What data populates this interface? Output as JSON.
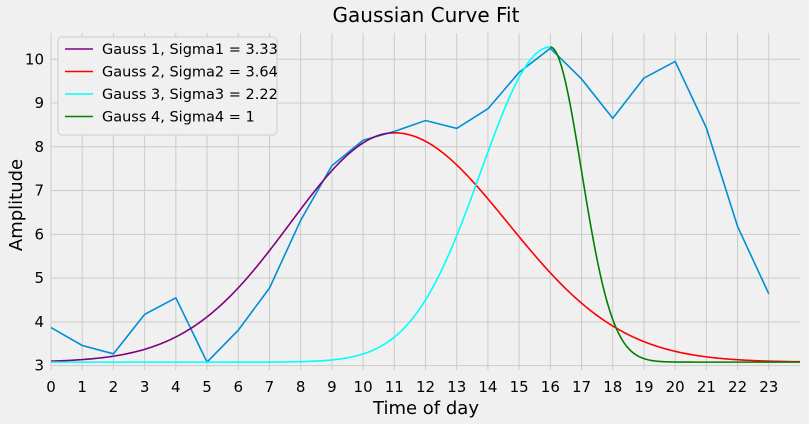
{
  "chart_data": {
    "type": "line",
    "title": "Gaussian Curve Fit",
    "xlabel": "Time of day",
    "ylabel": "Amplitude",
    "xlim": [
      0,
      24
    ],
    "ylim": [
      2.9,
      10.6
    ],
    "grid": true,
    "legend_position": "top-left",
    "x_ticks": [
      0,
      1,
      2,
      3,
      4,
      5,
      6,
      7,
      8,
      9,
      10,
      11,
      12,
      13,
      14,
      15,
      16,
      17,
      18,
      19,
      20,
      21,
      22,
      23
    ],
    "y_ticks": [
      3,
      4,
      5,
      6,
      7,
      8,
      9,
      10
    ],
    "series": [
      {
        "legend": false,
        "color": "#008fd5",
        "x": [
          0,
          1,
          2,
          3,
          4,
          5,
          6,
          7,
          8,
          9,
          10,
          11,
          12,
          13,
          14,
          15,
          16,
          17,
          18,
          19,
          20,
          21,
          22,
          23
        ],
        "y": [
          3.87,
          3.46,
          3.27,
          4.17,
          4.55,
          3.08,
          3.81,
          4.77,
          6.32,
          7.57,
          8.15,
          8.35,
          8.6,
          8.42,
          8.87,
          9.7,
          10.25,
          9.55,
          8.65,
          9.57,
          9.95,
          8.43,
          6.18,
          4.64
        ]
      },
      {
        "name": "Gauss 1, Sigma1 = 3.33",
        "color": "#800080",
        "model": "gaussian",
        "amplitude": 5.24,
        "mean": 11,
        "sigma": 3.33,
        "offset": 3.08,
        "x_range": [
          0,
          11
        ]
      },
      {
        "name": "Gauss 2, Sigma2 = 3.64",
        "color": "#ff0000",
        "model": "gaussian",
        "amplitude": 5.24,
        "mean": 11,
        "sigma": 3.64,
        "offset": 3.08,
        "x_range": [
          11,
          24
        ]
      },
      {
        "name": "Gauss 3, Sigma3 = 2.22",
        "color": "#00ffff",
        "model": "gaussian",
        "amplitude": 7.2,
        "mean": 16,
        "sigma": 2.22,
        "offset": 3.08,
        "x_range": [
          0,
          16
        ]
      },
      {
        "name": "Gauss 4, Sigma4 = 1",
        "color": "#008000",
        "model": "gaussian",
        "amplitude": 7.2,
        "mean": 16,
        "sigma": 1,
        "offset": 3.08,
        "x_range": [
          16,
          24
        ]
      }
    ]
  }
}
